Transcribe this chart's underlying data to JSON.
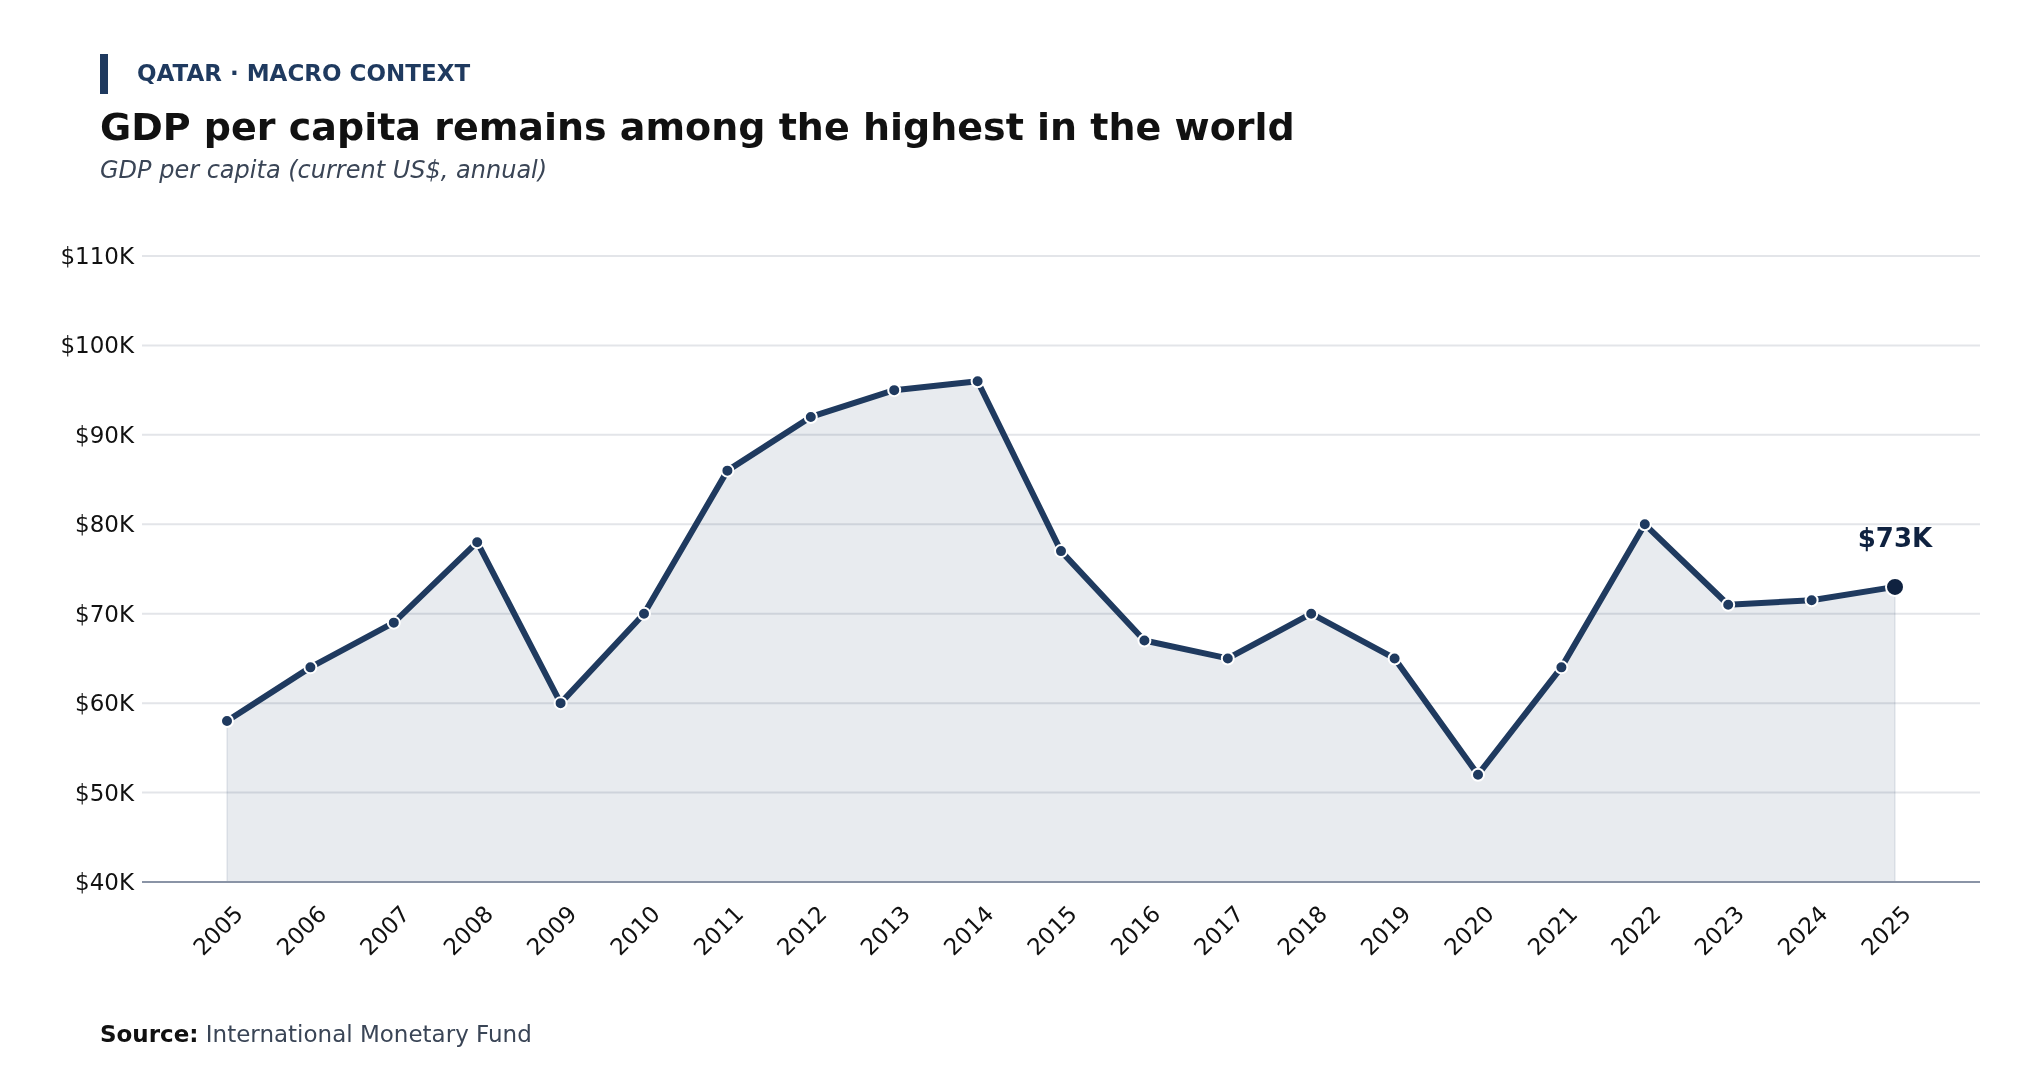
{
  "chart_data": {
    "type": "area",
    "title": "GDP per capita remains among the highest in the world",
    "subtitle": "GDP per capita (current US$, annual)",
    "annotations": [
      "QATAR · MACRO CONTEXT",
      "Source: International Monetary Fund",
      {
        "text": "$73K",
        "x": "2025",
        "y": 73
      }
    ],
    "categories": [
      "2005",
      "2006",
      "2007",
      "2008",
      "2009",
      "2010",
      "2011",
      "2012",
      "2013",
      "2014",
      "2015",
      "2016",
      "2017",
      "2018",
      "2019",
      "2020",
      "2021",
      "2022",
      "2023",
      "2024",
      "2025"
    ],
    "series": [
      {
        "color": "#1f3a5f",
        "values": [
          58,
          64,
          69,
          78,
          60,
          70,
          86,
          92,
          95,
          96,
          77,
          67,
          65,
          70,
          65,
          52,
          64,
          80,
          71,
          71.5,
          73
        ]
      }
    ],
    "ylim": [
      40,
      110
    ],
    "yticks": [
      {
        "value": 40,
        "label": "$40K"
      },
      {
        "value": 50,
        "label": "$50K"
      },
      {
        "value": 60,
        "label": "$60K"
      },
      {
        "value": 70,
        "label": "$70K"
      },
      {
        "value": 80,
        "label": "$80K"
      },
      {
        "value": 90,
        "label": "$90K"
      },
      {
        "value": 100,
        "label": "$100K"
      },
      {
        "value": 110,
        "label": "$110K"
      }
    ],
    "grid": "y",
    "marker": "circle",
    "line_style": "solid"
  }
}
